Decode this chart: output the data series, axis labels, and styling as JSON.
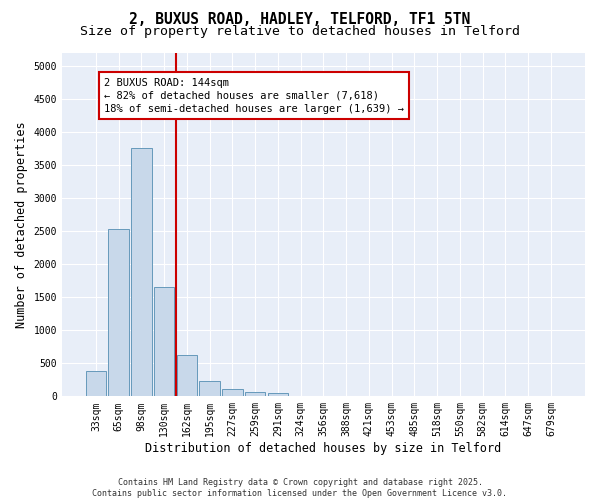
{
  "title_line1": "2, BUXUS ROAD, HADLEY, TELFORD, TF1 5TN",
  "title_line2": "Size of property relative to detached houses in Telford",
  "xlabel": "Distribution of detached houses by size in Telford",
  "ylabel": "Number of detached properties",
  "categories": [
    "33sqm",
    "65sqm",
    "98sqm",
    "130sqm",
    "162sqm",
    "195sqm",
    "227sqm",
    "259sqm",
    "291sqm",
    "324sqm",
    "356sqm",
    "388sqm",
    "421sqm",
    "453sqm",
    "485sqm",
    "518sqm",
    "550sqm",
    "582sqm",
    "614sqm",
    "647sqm",
    "679sqm"
  ],
  "values": [
    380,
    2530,
    3760,
    1650,
    620,
    230,
    110,
    65,
    45,
    0,
    0,
    0,
    0,
    0,
    0,
    0,
    0,
    0,
    0,
    0,
    0
  ],
  "bar_color": "#c8d8ea",
  "bar_edge_color": "#6699bb",
  "vline_color": "#cc0000",
  "vline_x_index": 3,
  "annotation_text": "2 BUXUS ROAD: 144sqm\n← 82% of detached houses are smaller (7,618)\n18% of semi-detached houses are larger (1,639) →",
  "annotation_box_color": "#cc0000",
  "annotation_fontsize": 7.5,
  "ylim": [
    0,
    5200
  ],
  "yticks": [
    0,
    500,
    1000,
    1500,
    2000,
    2500,
    3000,
    3500,
    4000,
    4500,
    5000
  ],
  "background_color": "#e8eef8",
  "grid_color": "#ffffff",
  "footer_text": "Contains HM Land Registry data © Crown copyright and database right 2025.\nContains public sector information licensed under the Open Government Licence v3.0.",
  "title_fontsize": 10.5,
  "subtitle_fontsize": 9.5,
  "tick_fontsize": 7,
  "ylabel_fontsize": 8.5,
  "xlabel_fontsize": 8.5,
  "footer_fontsize": 6.0
}
